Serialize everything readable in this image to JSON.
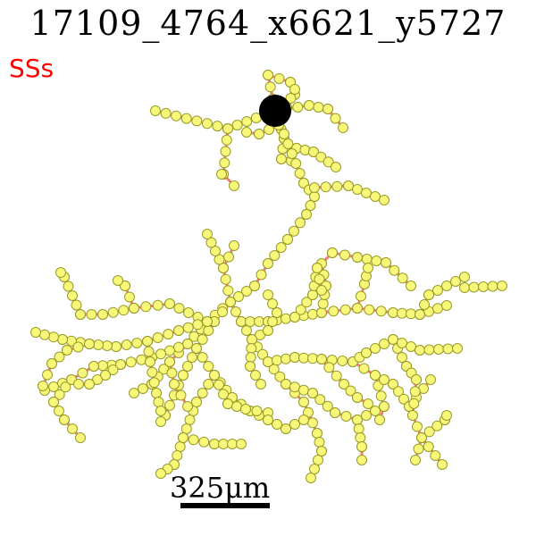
{
  "title": "17109_4764_x6621_y5727",
  "tag_label": "SSs",
  "scale_bar_label": "325μm",
  "colors": {
    "branch": "#f47c6e",
    "node_fill": "#f7f77a",
    "node_stroke": "#9a9a28",
    "soma": "#000000",
    "tag": "#ff0000",
    "scale_bar": "#000000"
  }
}
